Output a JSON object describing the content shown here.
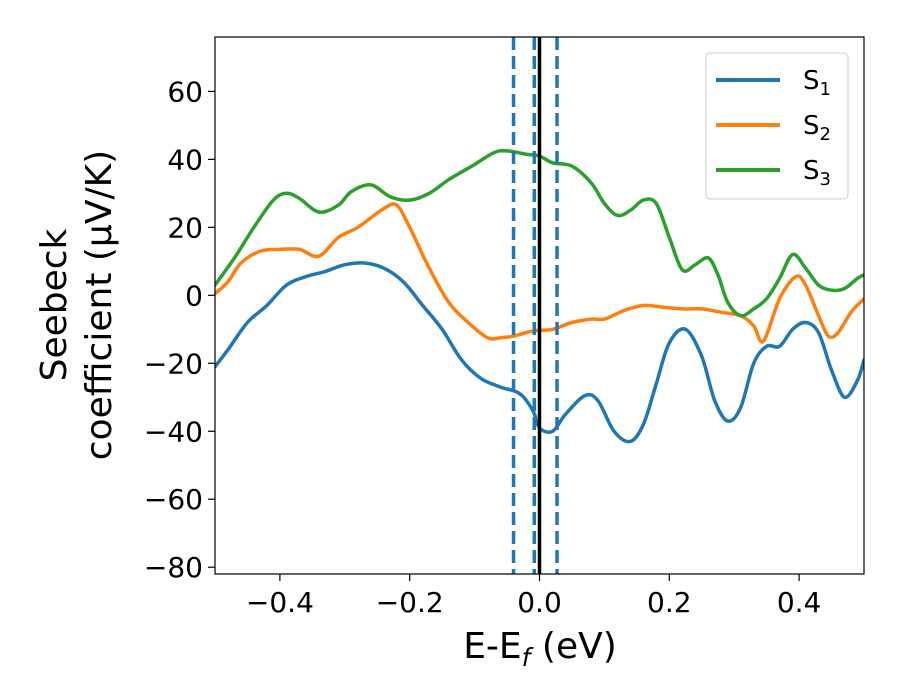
{
  "chart_data": {
    "type": "line",
    "xlabel": "E-E",
    "xlabel_sub": "f",
    "xlabel_unit": " (eV)",
    "ylabel_line1": "Seebeck",
    "ylabel_line2": "coefficient  (μV/K)",
    "xlim": [
      -0.5,
      0.5
    ],
    "ylim": [
      -82,
      76
    ],
    "x_ticks": [
      -0.4,
      -0.2,
      0.0,
      0.2,
      0.4
    ],
    "x_tick_labels": [
      "−0.4",
      "−0.2",
      "0.0",
      "0.2",
      "0.4"
    ],
    "y_ticks": [
      -80,
      -60,
      -40,
      -20,
      0,
      20,
      40,
      60
    ],
    "y_tick_labels": [
      "−80",
      "−60",
      "−40",
      "−20",
      "0",
      "20",
      "40",
      "60"
    ],
    "grid": false,
    "legend_position": "top-right",
    "vertical_lines": [
      {
        "x": 0.0,
        "style": "solid",
        "color": "#000000"
      },
      {
        "x": -0.04,
        "style": "dashed",
        "color": "#1f77b4"
      },
      {
        "x": -0.008,
        "style": "dashed",
        "color": "#1f77b4"
      },
      {
        "x": 0.027,
        "style": "dashed",
        "color": "#1f77b4"
      }
    ],
    "series": [
      {
        "name": "S",
        "name_sub": "1",
        "color": "#1f77b4",
        "points": [
          [
            -0.5,
            -21
          ],
          [
            -0.48,
            -16
          ],
          [
            -0.45,
            -8
          ],
          [
            -0.42,
            -3
          ],
          [
            -0.39,
            3
          ],
          [
            -0.36,
            5.5
          ],
          [
            -0.33,
            7
          ],
          [
            -0.3,
            9
          ],
          [
            -0.27,
            9.5
          ],
          [
            -0.24,
            8
          ],
          [
            -0.21,
            4
          ],
          [
            -0.18,
            -3
          ],
          [
            -0.15,
            -10
          ],
          [
            -0.12,
            -19
          ],
          [
            -0.09,
            -24.5
          ],
          [
            -0.06,
            -27
          ],
          [
            -0.03,
            -29
          ],
          [
            -0.01,
            -34
          ],
          [
            0.0,
            -39
          ],
          [
            0.02,
            -40
          ],
          [
            0.04,
            -35
          ],
          [
            0.07,
            -29.5
          ],
          [
            0.09,
            -31
          ],
          [
            0.115,
            -40
          ],
          [
            0.14,
            -43
          ],
          [
            0.16,
            -38
          ],
          [
            0.18,
            -26
          ],
          [
            0.2,
            -14
          ],
          [
            0.225,
            -10
          ],
          [
            0.25,
            -18
          ],
          [
            0.27,
            -31
          ],
          [
            0.29,
            -37
          ],
          [
            0.31,
            -33
          ],
          [
            0.33,
            -20
          ],
          [
            0.35,
            -15
          ],
          [
            0.37,
            -15
          ],
          [
            0.39,
            -10
          ],
          [
            0.41,
            -8
          ],
          [
            0.43,
            -11
          ],
          [
            0.45,
            -22
          ],
          [
            0.47,
            -30
          ],
          [
            0.49,
            -25
          ],
          [
            0.5,
            -19
          ]
        ]
      },
      {
        "name": "S",
        "name_sub": "2",
        "color": "#ff7f0e",
        "points": [
          [
            -0.5,
            0.5
          ],
          [
            -0.48,
            4
          ],
          [
            -0.46,
            9.5
          ],
          [
            -0.43,
            13
          ],
          [
            -0.4,
            13.5
          ],
          [
            -0.37,
            13.5
          ],
          [
            -0.34,
            11.5
          ],
          [
            -0.31,
            17
          ],
          [
            -0.28,
            20
          ],
          [
            -0.24,
            25.5
          ],
          [
            -0.22,
            26.5
          ],
          [
            -0.2,
            20
          ],
          [
            -0.17,
            8
          ],
          [
            -0.14,
            -2
          ],
          [
            -0.11,
            -8
          ],
          [
            -0.08,
            -12.5
          ],
          [
            -0.06,
            -12.5
          ],
          [
            -0.04,
            -12
          ],
          [
            -0.01,
            -10.5
          ],
          [
            0.02,
            -10
          ],
          [
            0.05,
            -8
          ],
          [
            0.08,
            -7
          ],
          [
            0.1,
            -7
          ],
          [
            0.13,
            -4.5
          ],
          [
            0.16,
            -3
          ],
          [
            0.19,
            -3.5
          ],
          [
            0.22,
            -4
          ],
          [
            0.25,
            -4
          ],
          [
            0.28,
            -5
          ],
          [
            0.31,
            -6
          ],
          [
            0.33,
            -9
          ],
          [
            0.345,
            -13.5
          ],
          [
            0.37,
            -1
          ],
          [
            0.395,
            5.5
          ],
          [
            0.41,
            3
          ],
          [
            0.43,
            -6
          ],
          [
            0.445,
            -12
          ],
          [
            0.46,
            -11
          ],
          [
            0.48,
            -5
          ],
          [
            0.5,
            -1
          ]
        ]
      },
      {
        "name": "S",
        "name_sub": "3",
        "color": "#2ca02c",
        "points": [
          [
            -0.5,
            3
          ],
          [
            -0.47,
            11
          ],
          [
            -0.44,
            20
          ],
          [
            -0.41,
            28
          ],
          [
            -0.39,
            30
          ],
          [
            -0.37,
            28.5
          ],
          [
            -0.34,
            24.5
          ],
          [
            -0.31,
            26.5
          ],
          [
            -0.29,
            30.5
          ],
          [
            -0.26,
            32.5
          ],
          [
            -0.23,
            29
          ],
          [
            -0.2,
            28
          ],
          [
            -0.17,
            30
          ],
          [
            -0.14,
            34
          ],
          [
            -0.1,
            38.5
          ],
          [
            -0.07,
            42
          ],
          [
            -0.05,
            42.5
          ],
          [
            -0.02,
            41.5
          ],
          [
            0.0,
            41
          ],
          [
            0.02,
            39
          ],
          [
            0.05,
            38
          ],
          [
            0.08,
            33
          ],
          [
            0.1,
            27
          ],
          [
            0.12,
            23.5
          ],
          [
            0.14,
            25
          ],
          [
            0.16,
            28
          ],
          [
            0.18,
            27
          ],
          [
            0.2,
            17
          ],
          [
            0.22,
            7.5
          ],
          [
            0.24,
            9
          ],
          [
            0.26,
            11
          ],
          [
            0.275,
            6
          ],
          [
            0.29,
            -2
          ],
          [
            0.31,
            -6
          ],
          [
            0.33,
            -4
          ],
          [
            0.35,
            -1
          ],
          [
            0.37,
            5
          ],
          [
            0.39,
            12
          ],
          [
            0.41,
            8
          ],
          [
            0.43,
            3
          ],
          [
            0.45,
            1.5
          ],
          [
            0.47,
            2
          ],
          [
            0.49,
            5
          ],
          [
            0.5,
            6
          ]
        ]
      }
    ]
  }
}
